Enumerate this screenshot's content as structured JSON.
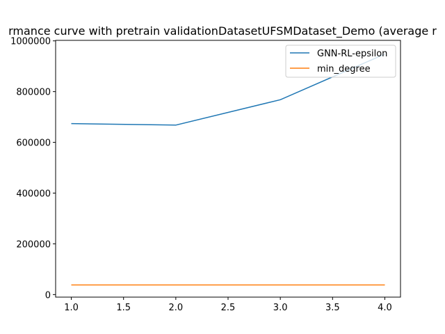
{
  "chart_data": {
    "type": "line",
    "title": "rmance curve with pretrain validationDatasetUFSMDataset_Demo (average r",
    "xlabel": "",
    "ylabel": "",
    "x": [
      1.0,
      2.0,
      3.0,
      4.0
    ],
    "xlim": [
      0.85,
      4.15
    ],
    "ylim": [
      -10000,
      1002000
    ],
    "x_ticks": [
      1.0,
      1.5,
      2.0,
      2.5,
      3.0,
      3.5,
      4.0
    ],
    "x_tick_labels": [
      "1.0",
      "1.5",
      "2.0",
      "2.5",
      "3.0",
      "3.5",
      "4.0"
    ],
    "y_ticks": [
      0,
      200000,
      400000,
      600000,
      800000,
      1000000
    ],
    "y_tick_labels": [
      "0",
      "200000",
      "400000",
      "600000",
      "800000",
      "1000000"
    ],
    "grid": false,
    "legend_position": "top-right",
    "series": [
      {
        "name": "GNN-RL-epsilon",
        "color": "#1f77b4",
        "values": [
          674000,
          668000,
          768000,
          948000
        ]
      },
      {
        "name": "min_degree",
        "color": "#ff7f0e",
        "values": [
          38000,
          38000,
          38000,
          38000
        ]
      }
    ]
  }
}
